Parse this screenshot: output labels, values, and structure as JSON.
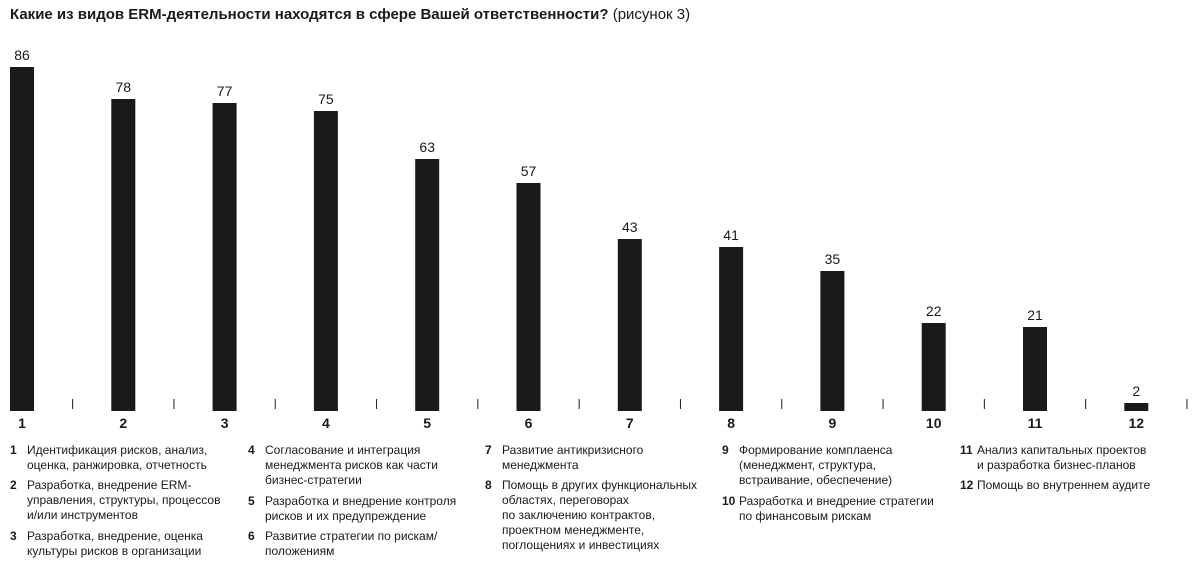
{
  "title": {
    "bold": "Какие из видов ERM-деятельности находятся в сфере Вашей ответственности?",
    "normal": "(рисунок 3)"
  },
  "colors": {
    "bar": "#1a1a1a",
    "text": "#1a1a1a",
    "axis": "#1a1a1a"
  },
  "chart_data": {
    "type": "bar",
    "title": "Какие из видов ERM-деятельности находятся в сфере Вашей ответственности? (рисунок 3)",
    "categories": [
      "1",
      "2",
      "3",
      "4",
      "5",
      "6",
      "7",
      "8",
      "9",
      "10",
      "11",
      "12"
    ],
    "values": [
      86,
      78,
      77,
      75,
      63,
      57,
      43,
      41,
      35,
      22,
      21,
      2
    ],
    "xlabel": "",
    "ylabel": "",
    "grid": false,
    "legend": "bottom"
  },
  "legend": [
    {
      "num": "1",
      "lines": [
        "Идентификация рисков, анализ,",
        "оценка, ранжировка, отчетность"
      ]
    },
    {
      "num": "2",
      "lines": [
        "Разработка, внедрение ERM-",
        "управления, структуры, процессов",
        "и/или инструментов"
      ]
    },
    {
      "num": "3",
      "lines": [
        "Разработка, внедрение, оценка",
        "культуры рисков в организации"
      ]
    },
    {
      "num": "4",
      "lines": [
        "Согласование и интеграция",
        "менеджмента рисков как части",
        "бизнес-стратегии"
      ]
    },
    {
      "num": "5",
      "lines": [
        "Разработка и внедрение контроля",
        "рисков и их предупреждение"
      ]
    },
    {
      "num": "6",
      "lines": [
        "Развитие стратегии по рискам/",
        "положениям"
      ]
    },
    {
      "num": "7",
      "lines": [
        "Развитие антикризисного",
        "менеджмента"
      ]
    },
    {
      "num": "8",
      "lines": [
        "Помощь в других функциональных",
        "областях, переговорах",
        "по заключению контрактов,",
        "проектном менеджменте,",
        "поглощениях и инвестициях"
      ]
    },
    {
      "num": "9",
      "lines": [
        "Формирование комплаенса",
        "(менеджмент, структура,",
        "встраивание, обеспечение)"
      ]
    },
    {
      "num": "10",
      "lines": [
        "Разработка и внедрение стратегии",
        "по финансовым рискам"
      ]
    },
    {
      "num": "11",
      "lines": [
        "Анализ капитальных проектов",
        "и разработка бизнес-планов"
      ]
    },
    {
      "num": "12",
      "lines": [
        "Помощь во внутреннем аудите"
      ]
    }
  ]
}
